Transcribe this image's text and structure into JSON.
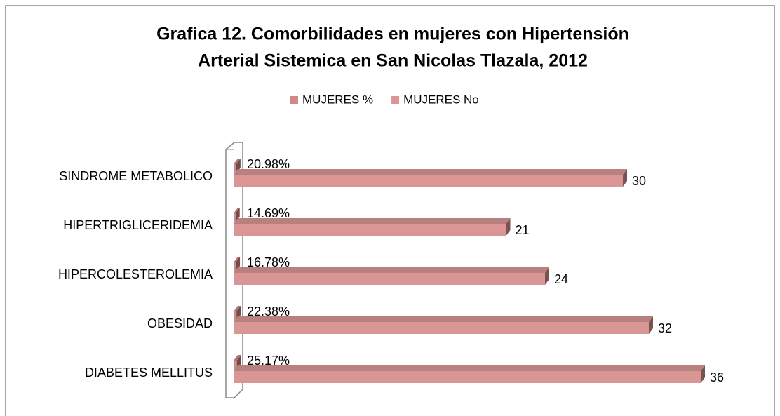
{
  "chart_data": {
    "type": "bar3d-horizontal",
    "title": [
      "Grafica 12. Comorbilidades  en mujeres con Hipertensión",
      "Arterial Sistemica en San Nicolas Tlazala, 2012"
    ],
    "categories": [
      "SINDROME METABOLICO",
      "HIPERTRIGLICERIDEMIA",
      "HIPERCOLESTEROLEMIA",
      "OBESIDAD",
      "DIABETES MELLITUS"
    ],
    "series": [
      {
        "name": "MUJERES %",
        "color": "#cf8a87",
        "values": [
          0.2098,
          0.1469,
          0.1678,
          0.2238,
          0.2517
        ],
        "value_labels": [
          "20.98%",
          "14.69%",
          "16.78%",
          "22.38%",
          "25.17%"
        ]
      },
      {
        "name": "MUJERES No",
        "color": "#d99694",
        "values": [
          30,
          21,
          24,
          32,
          36
        ]
      }
    ],
    "xlim": [
      0,
      40
    ],
    "legend": "top"
  }
}
